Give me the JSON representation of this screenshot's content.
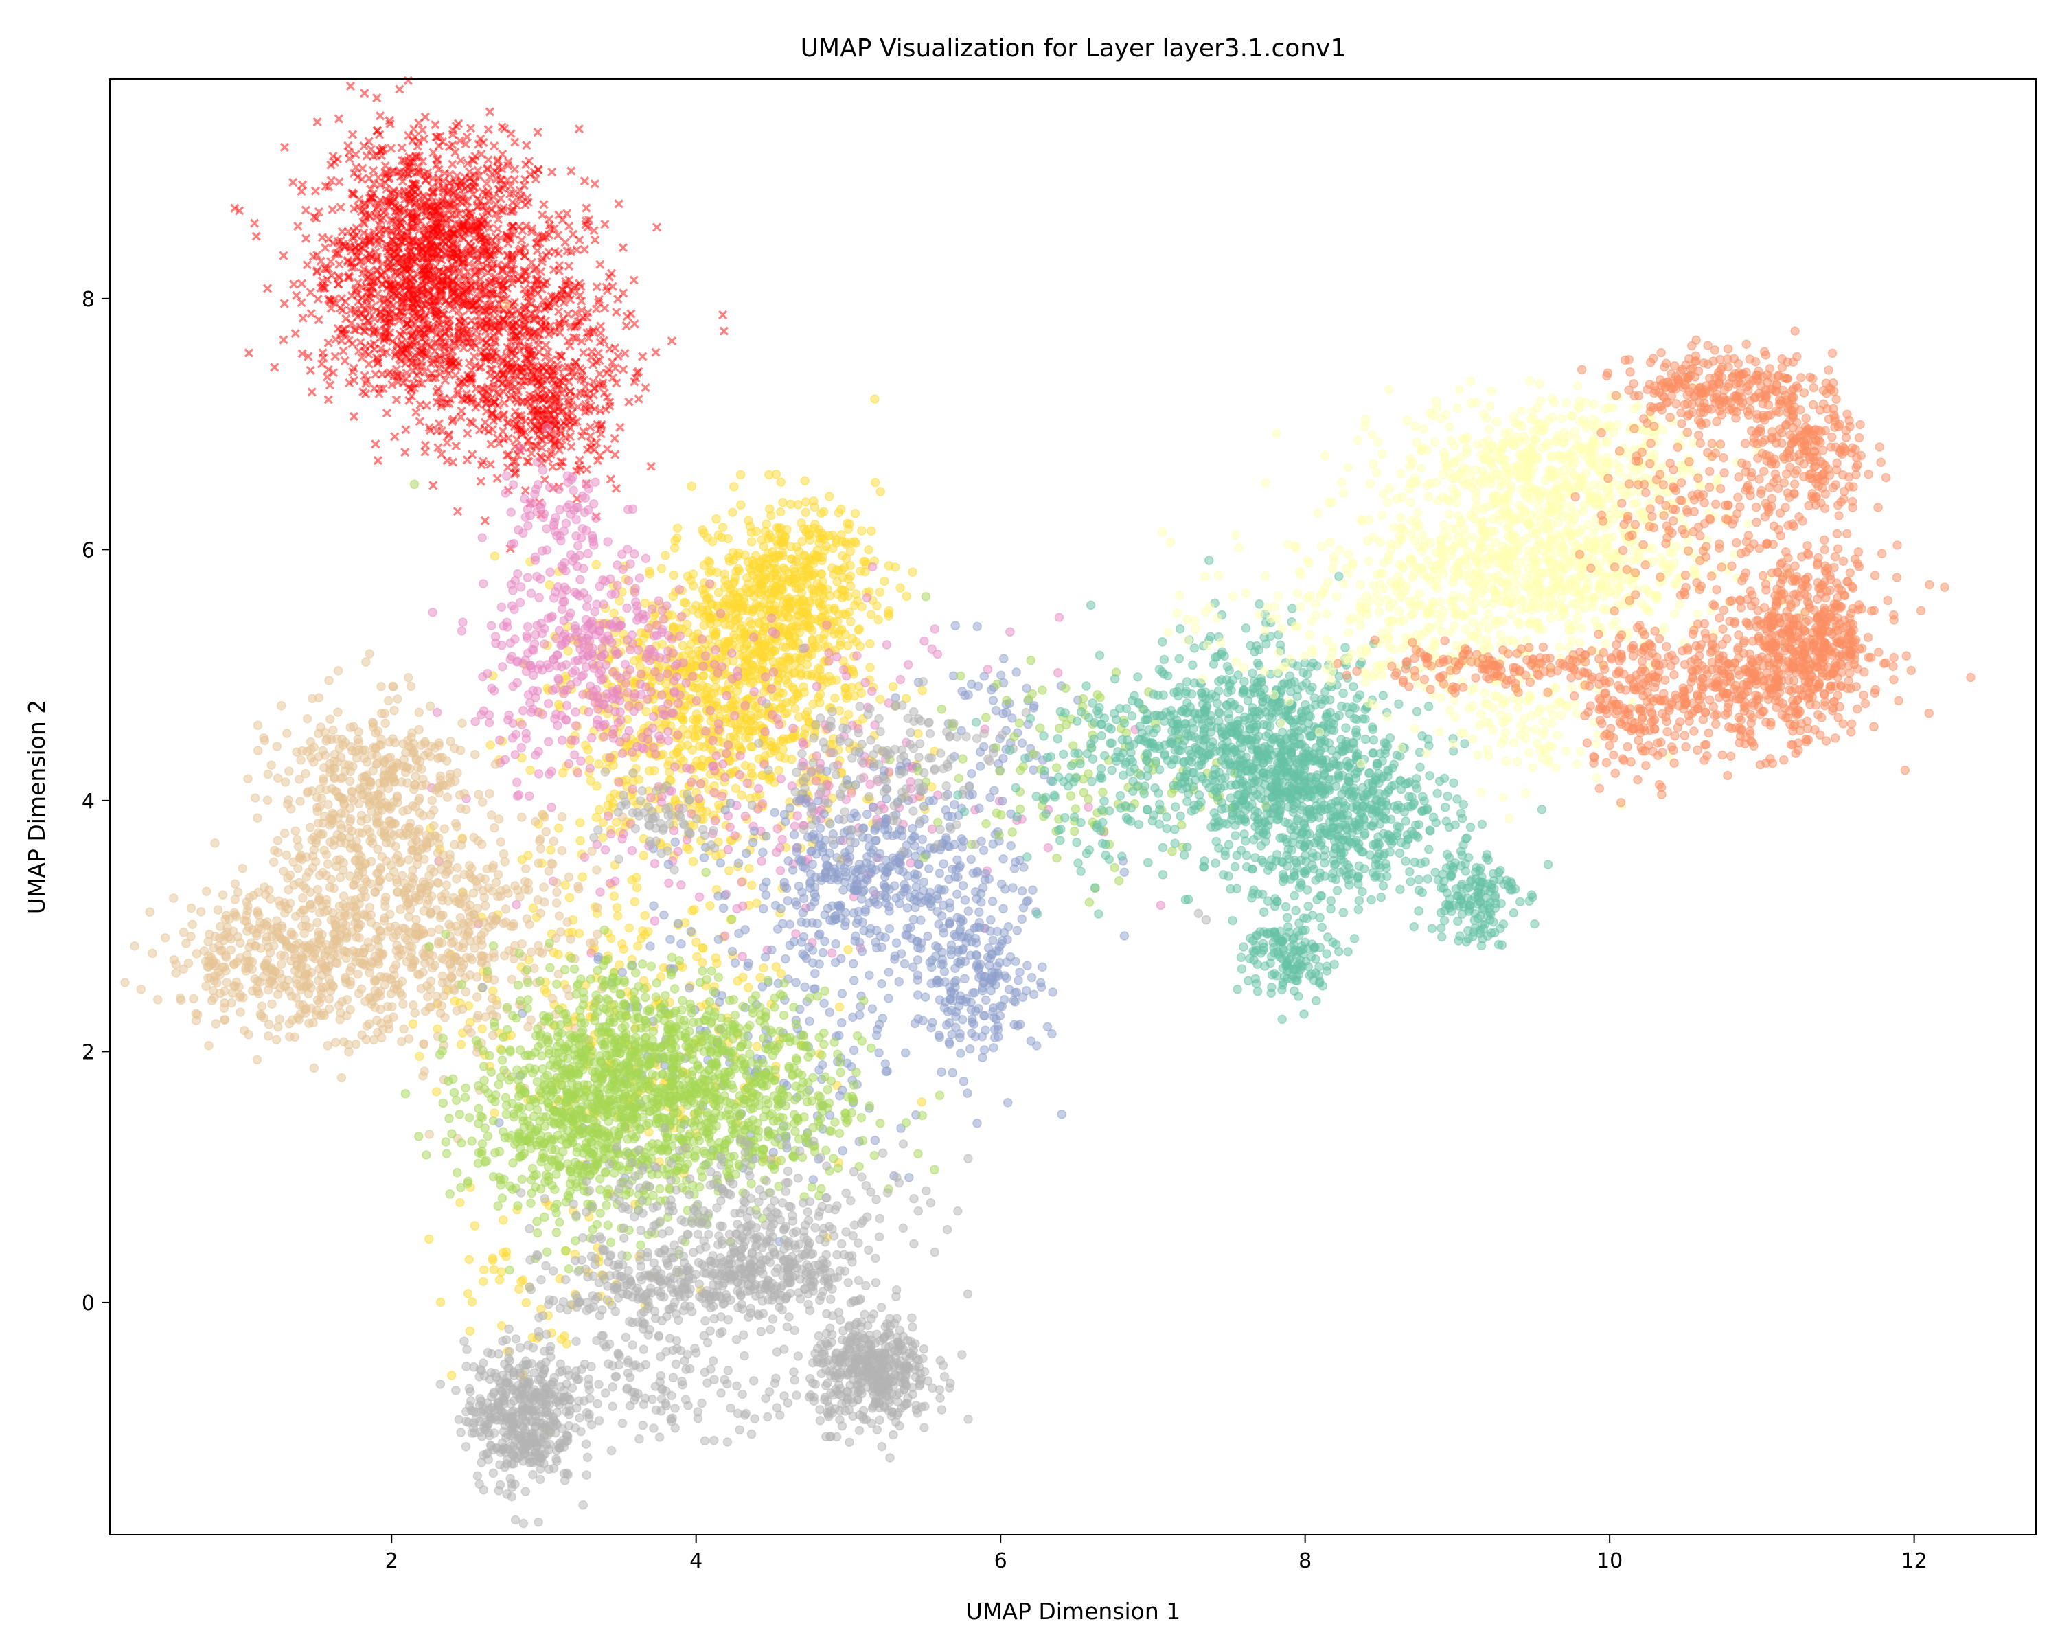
{
  "chart_data": {
    "type": "scatter",
    "title": "UMAP Visualization for Layer layer3.1.conv1",
    "xlabel": "UMAP Dimension 1",
    "ylabel": "UMAP Dimension 2",
    "xlim": [
      0.15,
      12.8
    ],
    "ylim": [
      -1.85,
      9.75
    ],
    "xticks": [
      2,
      4,
      6,
      8,
      10,
      12
    ],
    "yticks": [
      0,
      2,
      4,
      6,
      8
    ],
    "grid": false,
    "legend": "none",
    "point_alpha": 0.5,
    "series": [
      {
        "color": "#ff0000",
        "marker": "x",
        "clusters": [
          {
            "cx": 2.25,
            "cy": 8.55,
            "sx": 0.35,
            "sy": 0.4,
            "n": 900
          },
          {
            "cx": 2.75,
            "cy": 7.7,
            "sx": 0.4,
            "sy": 0.5,
            "n": 800
          },
          {
            "cx": 2.0,
            "cy": 7.9,
            "sx": 0.3,
            "sy": 0.35,
            "n": 400
          },
          {
            "cx": 3.05,
            "cy": 7.1,
            "sx": 0.2,
            "sy": 0.3,
            "n": 250
          }
        ],
        "points": [
          [
            0.97,
            8.72
          ],
          [
            1.0,
            8.7
          ],
          [
            1.1,
            8.6
          ],
          [
            3.0,
            8.75
          ],
          [
            2.65,
            6.68
          ],
          [
            3.1,
            6.5
          ]
        ]
      },
      {
        "color": "#ffd92f",
        "marker": "o",
        "clusters": [
          {
            "cx": 4.6,
            "cy": 5.7,
            "sx": 0.3,
            "sy": 0.35,
            "n": 500
          },
          {
            "cx": 4.2,
            "cy": 5.0,
            "sx": 0.45,
            "sy": 0.45,
            "n": 700
          },
          {
            "cx": 4.0,
            "cy": 4.3,
            "sx": 0.55,
            "sy": 0.45,
            "n": 350
          },
          {
            "cx": 3.5,
            "cy": 2.3,
            "sx": 0.6,
            "sy": 0.7,
            "n": 250
          },
          {
            "cx": 3.0,
            "cy": 0.2,
            "sx": 0.4,
            "sy": 0.4,
            "n": 60
          }
        ],
        "points": []
      },
      {
        "color": "#e78ac3",
        "marker": "o",
        "clusters": [
          {
            "cx": 3.3,
            "cy": 5.1,
            "sx": 0.35,
            "sy": 0.45,
            "n": 400
          },
          {
            "cx": 3.1,
            "cy": 6.2,
            "sx": 0.2,
            "sy": 0.3,
            "n": 80
          },
          {
            "cx": 4.5,
            "cy": 4.2,
            "sx": 0.8,
            "sy": 0.6,
            "n": 250
          }
        ],
        "points": []
      },
      {
        "color": "#e5c494",
        "marker": "o",
        "clusters": [
          {
            "cx": 1.8,
            "cy": 3.8,
            "sx": 0.3,
            "sy": 0.5,
            "n": 400
          },
          {
            "cx": 1.4,
            "cy": 2.75,
            "sx": 0.45,
            "sy": 0.3,
            "n": 500
          },
          {
            "cx": 2.4,
            "cy": 3.0,
            "sx": 0.45,
            "sy": 0.5,
            "n": 450
          },
          {
            "cx": 2.0,
            "cy": 4.3,
            "sx": 0.25,
            "sy": 0.15,
            "n": 100
          }
        ],
        "points": [
          [
            0.72,
            2.78
          ],
          [
            0.8,
            2.72
          ],
          [
            3.05,
            3.5
          ]
        ]
      },
      {
        "color": "#8da0cb",
        "marker": "o",
        "clusters": [
          {
            "cx": 5.2,
            "cy": 3.4,
            "sx": 0.45,
            "sy": 0.35,
            "n": 450
          },
          {
            "cx": 5.85,
            "cy": 2.55,
            "sx": 0.2,
            "sy": 0.3,
            "n": 200
          },
          {
            "cx": 4.5,
            "cy": 2.2,
            "sx": 0.7,
            "sy": 0.6,
            "n": 200
          },
          {
            "cx": 5.9,
            "cy": 4.6,
            "sx": 0.3,
            "sy": 0.35,
            "n": 60
          }
        ],
        "points": [
          [
            5.6,
            2.55
          ]
        ]
      },
      {
        "color": "#a6d854",
        "marker": "o",
        "clusters": [
          {
            "cx": 3.3,
            "cy": 1.5,
            "sx": 0.4,
            "sy": 0.45,
            "n": 800
          },
          {
            "cx": 4.2,
            "cy": 1.6,
            "sx": 0.45,
            "sy": 0.4,
            "n": 600
          },
          {
            "cx": 3.6,
            "cy": 2.1,
            "sx": 0.4,
            "sy": 0.35,
            "n": 300
          },
          {
            "cx": 6.5,
            "cy": 4.2,
            "sx": 0.5,
            "sy": 0.4,
            "n": 120
          }
        ],
        "points": [
          [
            5.6,
            1.65
          ],
          [
            2.15,
            6.52
          ],
          [
            2.5,
            0.95
          ]
        ]
      },
      {
        "color": "#b3b3b3",
        "marker": "o",
        "clusters": [
          {
            "cx": 2.85,
            "cy": -0.9,
            "sx": 0.18,
            "sy": 0.28,
            "n": 450
          },
          {
            "cx": 5.15,
            "cy": -0.55,
            "sx": 0.2,
            "sy": 0.22,
            "n": 450
          },
          {
            "cx": 4.5,
            "cy": 0.25,
            "sx": 0.3,
            "sy": 0.2,
            "n": 300
          },
          {
            "cx": 3.7,
            "cy": 0.1,
            "sx": 0.35,
            "sy": 0.2,
            "n": 250
          },
          {
            "cx": 3.8,
            "cy": -0.65,
            "sx": 0.5,
            "sy": 0.2,
            "n": 150
          },
          {
            "cx": 4.3,
            "cy": 0.8,
            "sx": 0.6,
            "sy": 0.25,
            "n": 200
          },
          {
            "cx": 5.2,
            "cy": 4.3,
            "sx": 0.4,
            "sy": 0.3,
            "n": 150
          },
          {
            "cx": 3.7,
            "cy": 3.8,
            "sx": 0.2,
            "sy": 0.15,
            "n": 60
          }
        ],
        "points": [
          [
            7.35,
            3.05
          ],
          [
            7.3,
            3.1
          ]
        ]
      },
      {
        "color": "#66c2a5",
        "marker": "o",
        "clusters": [
          {
            "cx": 7.8,
            "cy": 4.3,
            "sx": 0.35,
            "sy": 0.45,
            "n": 700
          },
          {
            "cx": 8.3,
            "cy": 3.9,
            "sx": 0.35,
            "sy": 0.35,
            "n": 500
          },
          {
            "cx": 9.1,
            "cy": 3.25,
            "sx": 0.15,
            "sy": 0.2,
            "n": 150
          },
          {
            "cx": 7.9,
            "cy": 2.75,
            "sx": 0.15,
            "sy": 0.18,
            "n": 150
          },
          {
            "cx": 7.3,
            "cy": 4.6,
            "sx": 0.3,
            "sy": 0.3,
            "n": 200
          },
          {
            "cx": 6.7,
            "cy": 4.2,
            "sx": 0.35,
            "sy": 0.4,
            "n": 150
          }
        ],
        "points": []
      },
      {
        "color": "#ffffb3",
        "marker": "o",
        "clusters": [
          {
            "cx": 9.6,
            "cy": 6.7,
            "sx": 0.5,
            "sy": 0.25,
            "n": 500
          },
          {
            "cx": 9.6,
            "cy": 5.9,
            "sx": 0.55,
            "sy": 0.3,
            "n": 600
          },
          {
            "cx": 9.0,
            "cy": 5.5,
            "sx": 0.6,
            "sy": 0.4,
            "n": 300
          },
          {
            "cx": 9.4,
            "cy": 4.6,
            "sx": 0.3,
            "sy": 0.25,
            "n": 100
          },
          {
            "cx": 8.1,
            "cy": 5.4,
            "sx": 0.5,
            "sy": 0.35,
            "n": 100
          }
        ],
        "points": [
          [
            2.75,
            7.95
          ]
        ]
      },
      {
        "color": "#fc8d62",
        "marker": "o",
        "clusters": [
          {
            "cx": 10.7,
            "cy": 7.3,
            "sx": 0.3,
            "sy": 0.15,
            "n": 250
          },
          {
            "cx": 11.3,
            "cy": 6.75,
            "sx": 0.2,
            "sy": 0.3,
            "n": 250
          },
          {
            "cx": 11.3,
            "cy": 5.3,
            "sx": 0.25,
            "sy": 0.35,
            "n": 500
          },
          {
            "cx": 10.9,
            "cy": 4.9,
            "sx": 0.3,
            "sy": 0.25,
            "n": 300
          },
          {
            "cx": 10.2,
            "cy": 4.8,
            "sx": 0.2,
            "sy": 0.3,
            "n": 200
          },
          {
            "cx": 10.5,
            "cy": 6.3,
            "sx": 0.3,
            "sy": 0.4,
            "n": 150
          },
          {
            "cx": 9.2,
            "cy": 5.05,
            "sx": 0.5,
            "sy": 0.08,
            "n": 150
          }
        ],
        "points": [
          [
            12.2,
            5.7
          ],
          [
            12.1,
            5.72
          ],
          [
            11.7,
            6.6
          ],
          [
            11.6,
            6.5
          ]
        ]
      }
    ]
  }
}
